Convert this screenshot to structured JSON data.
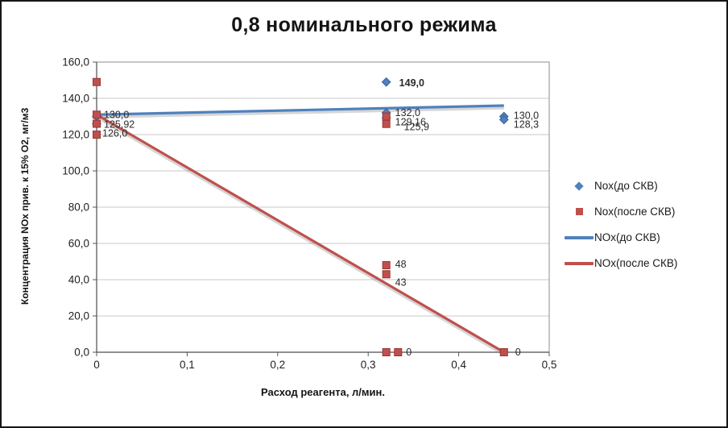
{
  "chart_data": {
    "type": "scatter",
    "title": "0,8 номинального режима",
    "xlabel": "Расход реагента, л/мин.",
    "ylabel": "Концентрация NOx прив. к 15% O2, мг/м3",
    "xlim": [
      0,
      0.5
    ],
    "ylim": [
      0,
      160
    ],
    "grid": "horizontal",
    "legend_position": "right",
    "x_ticks": [
      {
        "v": 0,
        "label": "0"
      },
      {
        "v": 0.1,
        "label": "0,1"
      },
      {
        "v": 0.2,
        "label": "0,2"
      },
      {
        "v": 0.3,
        "label": "0,3"
      },
      {
        "v": 0.4,
        "label": "0,4"
      },
      {
        "v": 0.5,
        "label": "0,5"
      }
    ],
    "y_ticks": [
      {
        "v": 160,
        "label": "160,0"
      },
      {
        "v": 140,
        "label": "140,0"
      },
      {
        "v": 120,
        "label": "120,0"
      },
      {
        "v": 100,
        "label": "100,0"
      },
      {
        "v": 80,
        "label": "80,0"
      },
      {
        "v": 60,
        "label": "60,0"
      },
      {
        "v": 40,
        "label": "40,0"
      },
      {
        "v": 20,
        "label": "20,0"
      },
      {
        "v": 0,
        "label": "0,0"
      }
    ],
    "scatter_series": [
      {
        "name": "Nox(до СКВ)",
        "marker": "diamond",
        "color": "#4f81bd",
        "edge": "#38609a",
        "points": [
          {
            "x": 0,
            "y": 130.0,
            "label": "130,0",
            "off": [
              9,
              2
            ]
          },
          {
            "x": 0,
            "y": 125.92,
            "label": "125,92",
            "off": [
              9,
              5
            ]
          },
          {
            "x": 0.32,
            "y": 149.0,
            "label": "149,0",
            "off": [
              16,
              5
            ],
            "bold": true
          },
          {
            "x": 0.32,
            "y": 132.0,
            "label": "132,0",
            "off": [
              11,
              4
            ]
          },
          {
            "x": 0.32,
            "y": 129.16,
            "label": "129,16",
            "off": [
              11,
              9
            ]
          },
          {
            "x": 0.45,
            "y": 130.0,
            "label": "130,0",
            "off": [
              12,
              3
            ]
          },
          {
            "x": 0.45,
            "y": 128.3,
            "label": "128,3",
            "off": [
              12,
              10
            ]
          }
        ]
      },
      {
        "name": "Nox(после СКВ)",
        "marker": "square",
        "color": "#c0504d",
        "edge": "#963634",
        "points": [
          {
            "x": 0,
            "y": 149.0
          },
          {
            "x": 0,
            "y": 131.0
          },
          {
            "x": 0,
            "y": 126.0,
            "label": "126,0",
            "off": [
              7,
              16
            ]
          },
          {
            "x": 0,
            "y": 120.0
          },
          {
            "x": 0.32,
            "y": 130.0
          },
          {
            "x": 0.32,
            "y": 125.9,
            "label": "125,9",
            "off": [
              22,
              8
            ]
          },
          {
            "x": 0.32,
            "y": 48.0,
            "label": "48",
            "off": [
              11,
              3
            ]
          },
          {
            "x": 0.32,
            "y": 43.0,
            "label": "43",
            "off": [
              11,
              14
            ]
          },
          {
            "x": 0.32,
            "y": 0.0,
            "label": "0",
            "off": [
              10,
              4
            ]
          },
          {
            "x": 0.333,
            "y": 0.0,
            "label": "0",
            "off": [
              10,
              4
            ]
          },
          {
            "x": 0.45,
            "y": 0.0,
            "label": "0",
            "off": [
              14,
              4
            ]
          }
        ]
      }
    ],
    "line_series": [
      {
        "name": "NOx(до СКВ)",
        "color": "#4f81bd",
        "points": [
          [
            0,
            131
          ],
          [
            0.45,
            136
          ]
        ]
      },
      {
        "name": "NOx(после СКВ)",
        "color": "#c0504d",
        "points": [
          [
            0,
            131
          ],
          [
            0.45,
            0
          ]
        ]
      }
    ],
    "legend": [
      {
        "label": "Nox(до СКВ)",
        "marker": "diamond",
        "color": "#4f81bd"
      },
      {
        "label": "Nox(после СКВ)",
        "marker": "square",
        "color": "#c0504d"
      },
      {
        "label": "NOx(до СКВ)",
        "marker": "line",
        "color": "#4f81bd"
      },
      {
        "label": "NOx(после СКВ)",
        "marker": "line",
        "color": "#c0504d"
      }
    ]
  }
}
